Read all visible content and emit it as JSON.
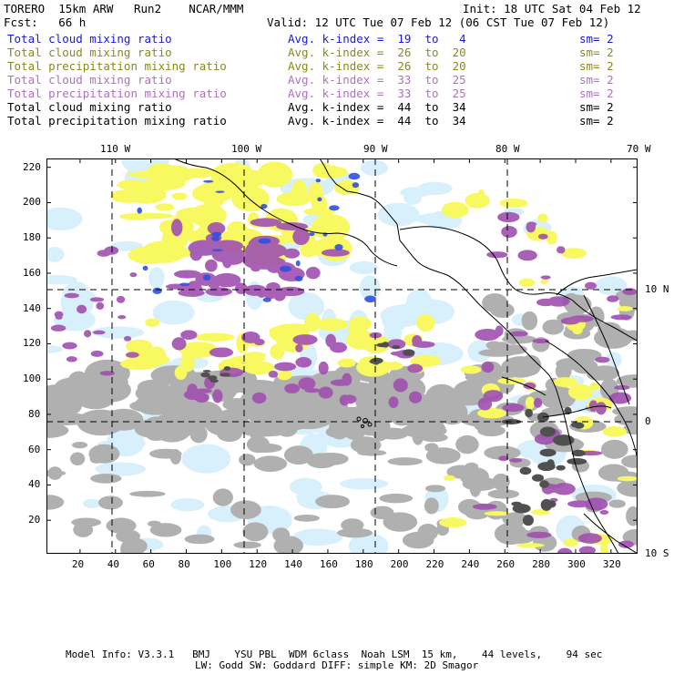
{
  "header": {
    "model": "TORERO  15km ARW   Run2    NCAR/MMM",
    "init": "Init: 18 UTC Sat 04 Feb 12",
    "fcst": "Fcst:   66 h",
    "valid": "Valid: 12 UTC Tue 07 Feb 12 (06 CST Tue 07 Feb 12)"
  },
  "legend": [
    {
      "field": "Total cloud mixing ratio",
      "kindex": "Avg. k-index =  19  to   4",
      "sm": "sm= 2",
      "color": "#1a1ad0"
    },
    {
      "field": "Total cloud mixing ratio",
      "kindex": "Avg. k-index =  26  to  20",
      "sm": "sm= 2",
      "color": "#8a8a1a"
    },
    {
      "field": "Total precipitation mixing ratio",
      "kindex": "Avg. k-index =  26  to  20",
      "sm": "sm= 2",
      "color": "#8a8a1a"
    },
    {
      "field": "Total cloud mixing ratio",
      "kindex": "Avg. k-index =  33  to  25",
      "sm": "sm= 2",
      "color": "#b070c0"
    },
    {
      "field": "Total precipitation mixing ratio",
      "kindex": "Avg. k-index =  33  to  25",
      "sm": "sm= 2",
      "color": "#b070c0"
    },
    {
      "field": "Total cloud mixing ratio",
      "kindex": "Avg. k-index =  44  to  34",
      "sm": "sm= 2",
      "color": "#000000"
    },
    {
      "field": "Total precipitation mixing ratio",
      "kindex": "Avg. k-index =  44  to  34",
      "sm": "sm= 2",
      "color": "#000000"
    }
  ],
  "axes": {
    "lon_labels": [
      "110 W",
      "100 W",
      "90 W",
      "80 W",
      "70 W"
    ],
    "lat_labels": [
      "10 N",
      "0",
      "10 S"
    ],
    "x_grid_ticks": [
      "20",
      "40",
      "60",
      "80",
      "100",
      "120",
      "140",
      "160",
      "180",
      "200",
      "220",
      "240",
      "260",
      "280",
      "300",
      "320"
    ],
    "y_grid_ticks": [
      "20",
      "40",
      "60",
      "80",
      "100",
      "120",
      "140",
      "160",
      "180",
      "200",
      "220"
    ]
  },
  "colors": {
    "light_blue": "#d8f0fc",
    "blue": "#3050e0",
    "yellow": "#f8f860",
    "purple": "#a050b0",
    "gray": "#b0b0b0",
    "dark_gray": "#505050"
  },
  "footer": {
    "line1": "Model Info: V3.3.1   BMJ    YSU PBL  WDM 6class  Noah LSM  15 km,    44 levels,    94 sec",
    "line2": "LW: Godd SW: Goddard DIFF: simple KM: 2D Smagor"
  }
}
